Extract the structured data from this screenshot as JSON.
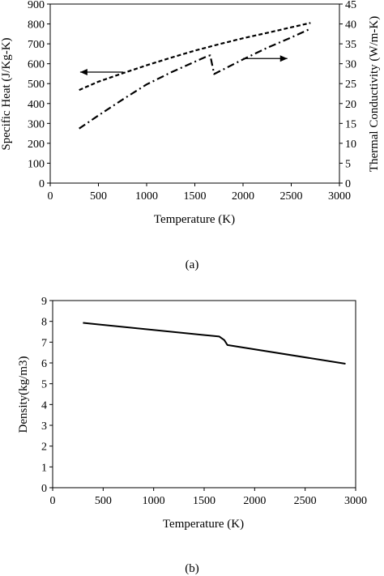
{
  "chart_data": [
    {
      "type": "line",
      "caption": "(a)",
      "xlabel": "Temperature (K)",
      "ylabel": "Specific Heat (J/Kg-K)",
      "y2label": "Thermal Conductivity (W/m-K)",
      "xlim": [
        0,
        3000
      ],
      "ylim": [
        0,
        900
      ],
      "y2lim": [
        0,
        45
      ],
      "xticks": [
        "0",
        "500",
        "1000",
        "1500",
        "2000",
        "2500",
        "3000"
      ],
      "yticks": [
        "0",
        "100",
        "200",
        "300",
        "400",
        "500",
        "600",
        "700",
        "800",
        "900"
      ],
      "y2ticks": [
        "0",
        "5",
        "10",
        "15",
        "20",
        "25",
        "30",
        "35",
        "40",
        "45"
      ],
      "grid": false,
      "series": [
        {
          "axis": "left",
          "style": "dashed",
          "x": [
            300,
            500,
            750,
            1000,
            1250,
            1500,
            1750,
            2000,
            2250,
            2500,
            2700
          ],
          "y": [
            468,
            510,
            552,
            592,
            630,
            666,
            698,
            728,
            755,
            783,
            805
          ]
        },
        {
          "axis": "right",
          "style": "dash-dot",
          "x": [
            300,
            500,
            750,
            1000,
            1250,
            1500,
            1640,
            1660,
            1700,
            2000,
            2250,
            2500,
            2700
          ],
          "y": [
            13.7,
            17.0,
            21.0,
            24.8,
            27.8,
            30.5,
            32.0,
            32.1,
            27.4,
            31.1,
            34.0,
            36.6,
            38.8
          ]
        }
      ],
      "annotations": [
        {
          "type": "arrow",
          "direction": "left",
          "target_axis": "left",
          "x_from": 760,
          "x_to": 310,
          "y": 558
        },
        {
          "type": "arrow",
          "direction": "right",
          "target_axis": "right",
          "x_from": 2000,
          "x_to": 2460,
          "y": 31.3
        }
      ]
    },
    {
      "type": "line",
      "caption": "(b)",
      "xlabel": "Temperature (K)",
      "ylabel": "Density(kg/m3)",
      "xlim": [
        0,
        3000
      ],
      "ylim": [
        0,
        9
      ],
      "xticks": [
        "0",
        "500",
        "1000",
        "1500",
        "2000",
        "2500",
        "3000"
      ],
      "yticks": [
        "0",
        "1",
        "2",
        "3",
        "4",
        "5",
        "6",
        "7",
        "8",
        "9"
      ],
      "grid": false,
      "series": [
        {
          "style": "solid",
          "x": [
            300,
            1650,
            1700,
            1730,
            2900
          ],
          "y": [
            7.93,
            7.27,
            7.1,
            6.86,
            5.96
          ]
        }
      ]
    }
  ]
}
